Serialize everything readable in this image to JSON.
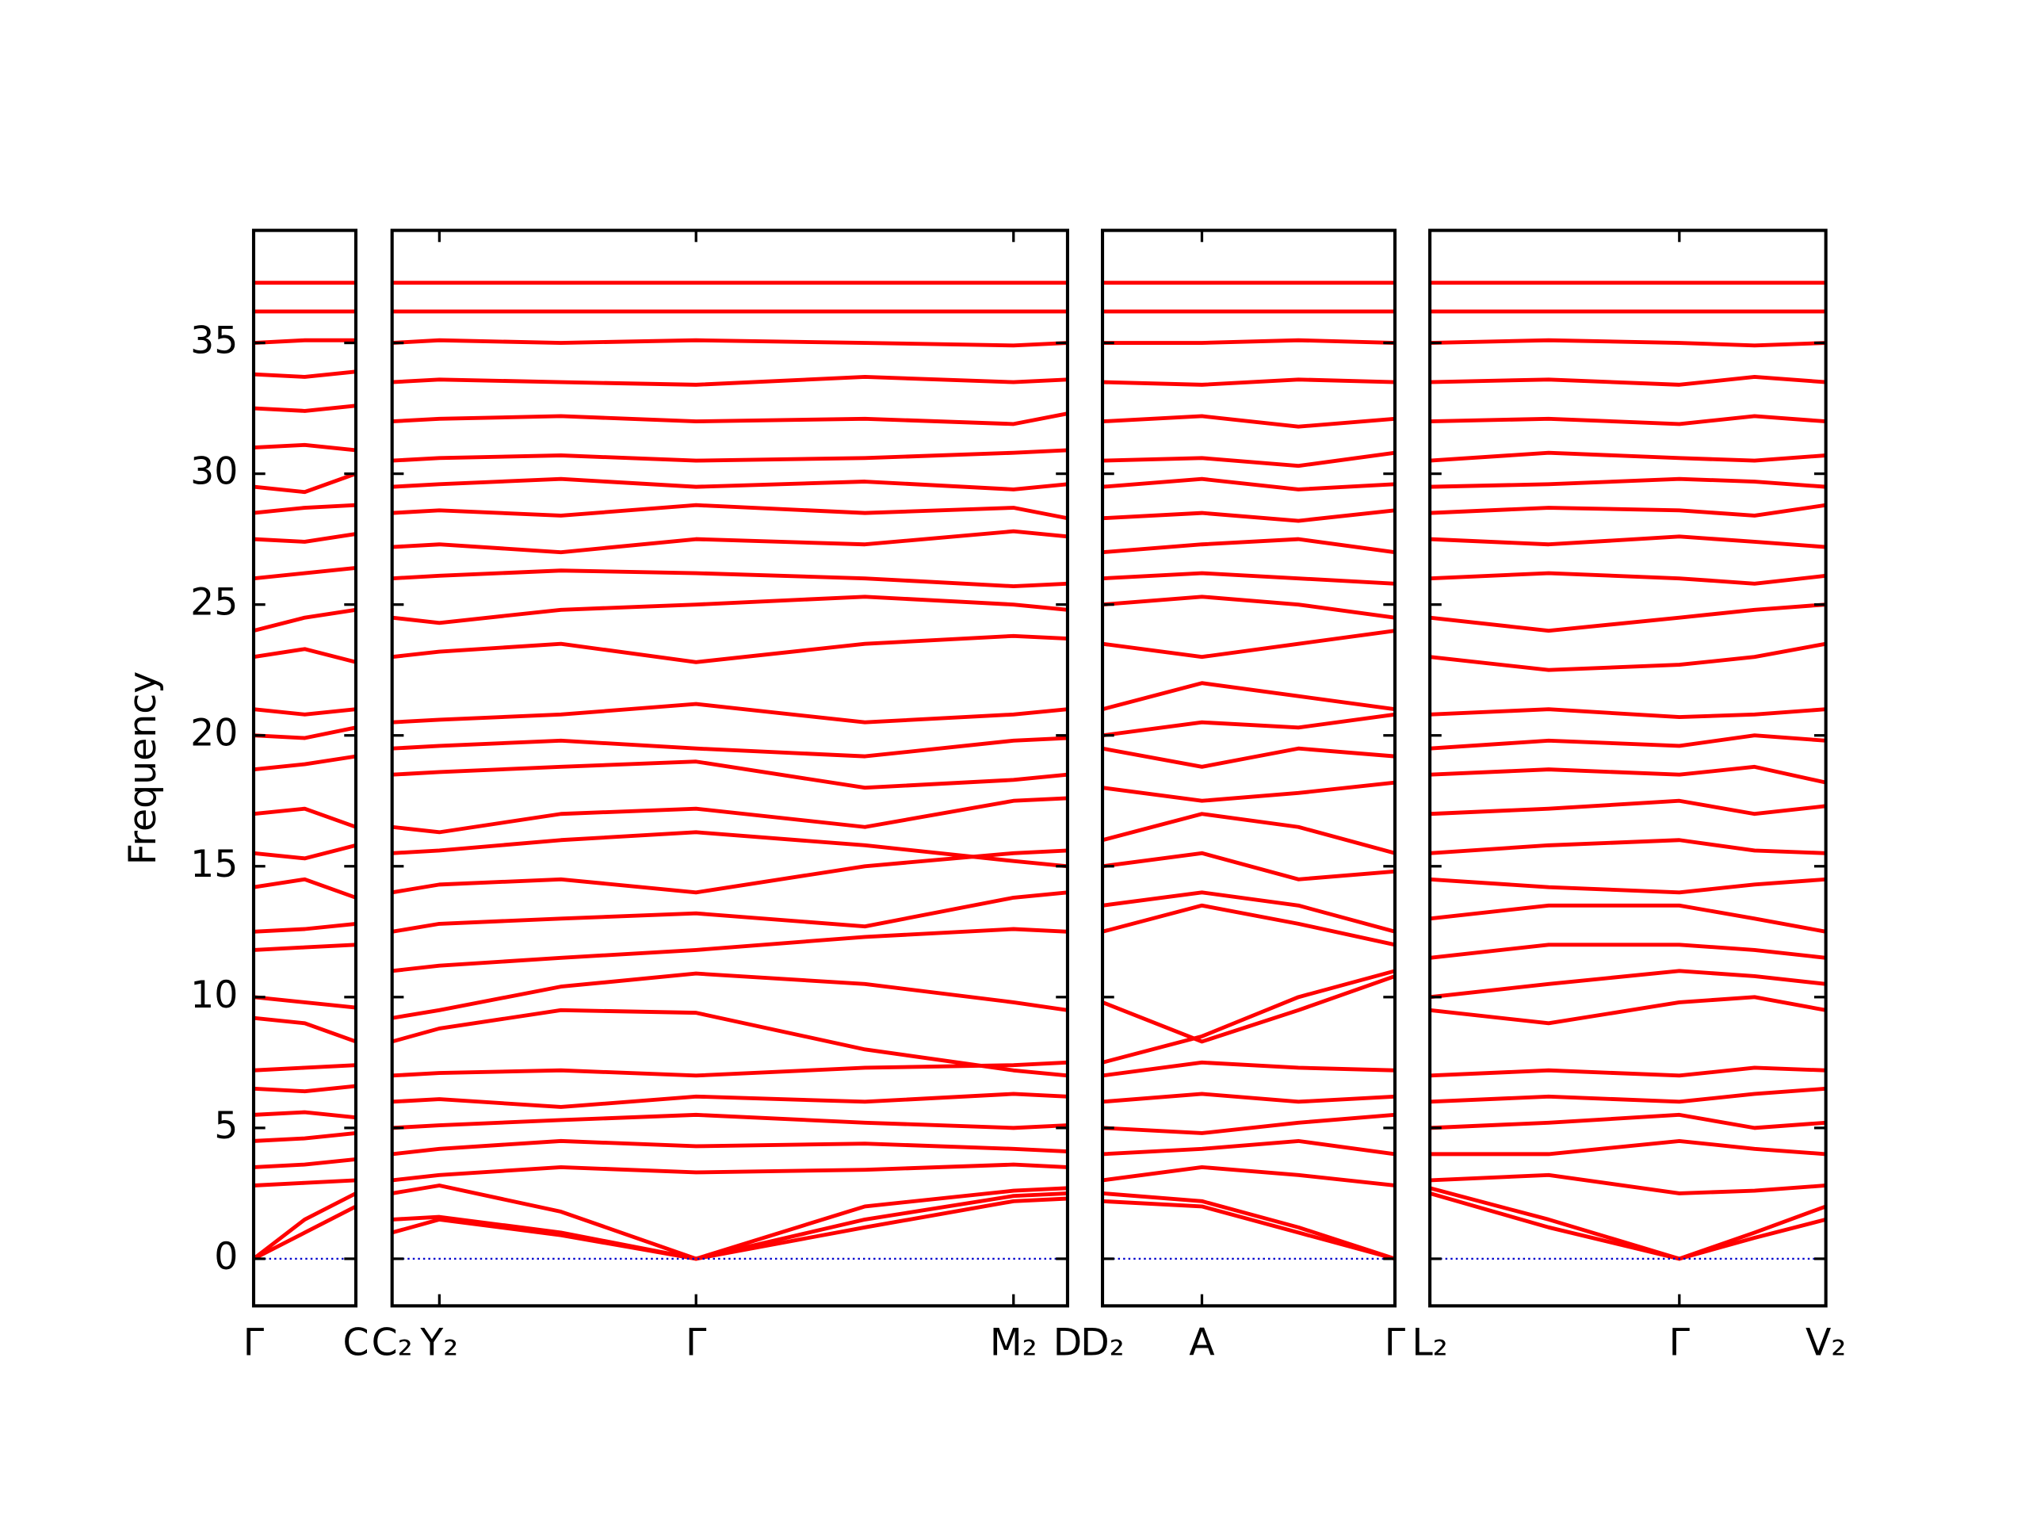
{
  "chart_data": [
    {
      "type": "line",
      "color": "#ff0000",
      "zero_line_color": "#0000cc",
      "ylabel": "Frequency",
      "show_ytick_labels": true,
      "xlim": [
        0,
        1
      ],
      "ylim": [
        -1.8,
        39.3
      ],
      "yticks": [
        0,
        5,
        10,
        15,
        20,
        25,
        30,
        35
      ],
      "xticks": [
        {
          "value": 0,
          "label": "Γ"
        },
        {
          "value": 1,
          "label": "C"
        }
      ],
      "x": [
        0,
        0.5,
        1
      ],
      "series": [
        {
          "values": [
            0,
            1.0,
            2.0
          ]
        },
        {
          "values": [
            0,
            1.5,
            2.5
          ]
        },
        {
          "values": [
            2.8,
            2.9,
            3.0
          ]
        },
        {
          "values": [
            3.5,
            3.6,
            3.8
          ]
        },
        {
          "values": [
            4.5,
            4.6,
            4.8
          ]
        },
        {
          "values": [
            5.5,
            5.6,
            5.4
          ]
        },
        {
          "values": [
            6.5,
            6.4,
            6.6
          ]
        },
        {
          "values": [
            7.2,
            7.3,
            7.4
          ]
        },
        {
          "values": [
            9.2,
            9.0,
            8.3
          ]
        },
        {
          "values": [
            10,
            9.8,
            9.6
          ]
        },
        {
          "values": [
            11.8,
            11.9,
            12.0
          ]
        },
        {
          "values": [
            12.5,
            12.6,
            12.8
          ]
        },
        {
          "values": [
            14.2,
            14.5,
            13.8
          ]
        },
        {
          "values": [
            15.5,
            15.3,
            15.8
          ]
        },
        {
          "values": [
            17,
            17.2,
            16.5
          ]
        },
        {
          "values": [
            18.7,
            18.9,
            19.2
          ]
        },
        {
          "values": [
            20,
            19.9,
            20.3
          ]
        },
        {
          "values": [
            21,
            20.8,
            21.0
          ]
        },
        {
          "values": [
            23,
            23.3,
            22.8
          ]
        },
        {
          "values": [
            24,
            24.5,
            24.8
          ]
        },
        {
          "values": [
            26,
            26.2,
            26.4
          ]
        },
        {
          "values": [
            27.5,
            27.4,
            27.7
          ]
        },
        {
          "values": [
            28.5,
            28.7,
            28.8
          ]
        },
        {
          "values": [
            29.5,
            29.3,
            30.0
          ]
        },
        {
          "values": [
            31,
            31.1,
            30.9
          ]
        },
        {
          "values": [
            32.5,
            32.4,
            32.6
          ]
        },
        {
          "values": [
            33.8,
            33.7,
            33.9
          ]
        },
        {
          "values": [
            35,
            35.1,
            35.1
          ]
        },
        {
          "values": [
            36.2,
            36.2,
            36.2
          ]
        },
        {
          "values": [
            37.3,
            37.3,
            37.3
          ]
        }
      ]
    },
    {
      "type": "line",
      "color": "#ff0000",
      "zero_line_color": "#0000cc",
      "show_ytick_labels": false,
      "xlim": [
        0,
        1
      ],
      "ylim": [
        -1.8,
        39.3
      ],
      "yticks": [
        0,
        5,
        10,
        15,
        20,
        25,
        30,
        35
      ],
      "xticks": [
        {
          "value": 0,
          "label": "C₂"
        },
        {
          "value": 0.07,
          "label": "Y₂"
        },
        {
          "value": 0.45,
          "label": "Γ"
        },
        {
          "value": 0.92,
          "label": "M₂"
        },
        {
          "value": 1,
          "label": "D"
        }
      ],
      "x": [
        0,
        0.07,
        0.25,
        0.45,
        0.7,
        0.92,
        1
      ],
      "series": [
        {
          "values": [
            1.0,
            1.5,
            0.9,
            0,
            1.2,
            2.2,
            2.3
          ]
        },
        {
          "values": [
            1.5,
            1.6,
            1.0,
            0,
            1.5,
            2.4,
            2.5
          ]
        },
        {
          "values": [
            2.5,
            2.8,
            1.8,
            0,
            2.0,
            2.6,
            2.7
          ]
        },
        {
          "values": [
            3,
            3.2,
            3.5,
            3.3,
            3.4,
            3.6,
            3.5
          ]
        },
        {
          "values": [
            4,
            4.2,
            4.5,
            4.3,
            4.4,
            4.2,
            4.1
          ]
        },
        {
          "values": [
            5,
            5.1,
            5.3,
            5.5,
            5.2,
            5.0,
            5.1
          ]
        },
        {
          "values": [
            6,
            6.1,
            5.8,
            6.2,
            6.0,
            6.3,
            6.2
          ]
        },
        {
          "values": [
            7,
            7.1,
            7.2,
            7.0,
            7.3,
            7.4,
            7.5
          ]
        },
        {
          "values": [
            8.3,
            8.8,
            9.5,
            9.4,
            8.0,
            7.2,
            7.0
          ]
        },
        {
          "values": [
            9.2,
            9.5,
            10.4,
            10.9,
            10.5,
            9.8,
            9.5
          ]
        },
        {
          "values": [
            11,
            11.2,
            11.5,
            11.8,
            12.3,
            12.6,
            12.5
          ]
        },
        {
          "values": [
            12.5,
            12.8,
            13.0,
            13.2,
            12.7,
            13.8,
            14.0
          ]
        },
        {
          "values": [
            14,
            14.3,
            14.5,
            14.0,
            15.0,
            15.5,
            15.6
          ]
        },
        {
          "values": [
            15.5,
            15.6,
            16.0,
            16.3,
            15.8,
            15.2,
            15.0
          ]
        },
        {
          "values": [
            16.5,
            16.3,
            17.0,
            17.2,
            16.5,
            17.5,
            17.6
          ]
        },
        {
          "values": [
            18.5,
            18.6,
            18.8,
            19.0,
            18.0,
            18.3,
            18.5
          ]
        },
        {
          "values": [
            19.5,
            19.6,
            19.8,
            19.5,
            19.2,
            19.8,
            19.9
          ]
        },
        {
          "values": [
            20.5,
            20.6,
            20.8,
            21.2,
            20.5,
            20.8,
            21.0
          ]
        },
        {
          "values": [
            23,
            23.2,
            23.5,
            22.8,
            23.5,
            23.8,
            23.7
          ]
        },
        {
          "values": [
            24.5,
            24.3,
            24.8,
            25.0,
            25.3,
            25.0,
            24.8
          ]
        },
        {
          "values": [
            26,
            26.1,
            26.3,
            26.2,
            26.0,
            25.7,
            25.8
          ]
        },
        {
          "values": [
            27.2,
            27.3,
            27.0,
            27.5,
            27.3,
            27.8,
            27.6
          ]
        },
        {
          "values": [
            28.5,
            28.6,
            28.4,
            28.8,
            28.5,
            28.7,
            28.3
          ]
        },
        {
          "values": [
            29.5,
            29.6,
            29.8,
            29.5,
            29.7,
            29.4,
            29.6
          ]
        },
        {
          "values": [
            30.5,
            30.6,
            30.7,
            30.5,
            30.6,
            30.8,
            30.9
          ]
        },
        {
          "values": [
            32,
            32.1,
            32.2,
            32.0,
            32.1,
            31.9,
            32.3
          ]
        },
        {
          "values": [
            33.5,
            33.6,
            33.5,
            33.4,
            33.7,
            33.5,
            33.6
          ]
        },
        {
          "values": [
            35,
            35.1,
            35.0,
            35.1,
            35.0,
            34.9,
            35.0
          ]
        },
        {
          "values": [
            36.2,
            36.2,
            36.2,
            36.2,
            36.2,
            36.2,
            36.2
          ]
        },
        {
          "values": [
            37.3,
            37.3,
            37.3,
            37.3,
            37.3,
            37.3,
            37.3
          ]
        }
      ]
    },
    {
      "type": "line",
      "color": "#ff0000",
      "zero_line_color": "#0000cc",
      "show_ytick_labels": false,
      "xlim": [
        0,
        1
      ],
      "ylim": [
        -1.8,
        39.3
      ],
      "yticks": [
        0,
        5,
        10,
        15,
        20,
        25,
        30,
        35
      ],
      "xticks": [
        {
          "value": 0,
          "label": "D₂"
        },
        {
          "value": 0.34,
          "label": "A"
        },
        {
          "value": 1,
          "label": "Γ"
        }
      ],
      "x": [
        0,
        0.34,
        0.67,
        1
      ],
      "series": [
        {
          "values": [
            2.2,
            2.0,
            1.0,
            0
          ]
        },
        {
          "values": [
            2.5,
            2.2,
            1.2,
            0
          ]
        },
        {
          "values": [
            3,
            3.5,
            3.2,
            2.8
          ]
        },
        {
          "values": [
            4,
            4.2,
            4.5,
            4.0
          ]
        },
        {
          "values": [
            5,
            4.8,
            5.2,
            5.5
          ]
        },
        {
          "values": [
            6,
            6.3,
            6.0,
            6.2
          ]
        },
        {
          "values": [
            7,
            7.5,
            7.3,
            7.2
          ]
        },
        {
          "values": [
            9.8,
            8.3,
            9.5,
            10.8
          ]
        },
        {
          "values": [
            7.5,
            8.5,
            10.0,
            11.0
          ]
        },
        {
          "values": [
            12.5,
            13.5,
            12.8,
            12.0
          ]
        },
        {
          "values": [
            13.5,
            14.0,
            13.5,
            12.5
          ]
        },
        {
          "values": [
            15,
            15.5,
            14.5,
            14.8
          ]
        },
        {
          "values": [
            16,
            17.0,
            16.5,
            15.5
          ]
        },
        {
          "values": [
            18,
            17.5,
            17.8,
            18.2
          ]
        },
        {
          "values": [
            19.5,
            18.8,
            19.5,
            19.2
          ]
        },
        {
          "values": [
            20,
            20.5,
            20.3,
            20.8
          ]
        },
        {
          "values": [
            21,
            22.0,
            21.5,
            21.0
          ]
        },
        {
          "values": [
            23.5,
            23.0,
            23.5,
            24.0
          ]
        },
        {
          "values": [
            25,
            25.3,
            25.0,
            24.5
          ]
        },
        {
          "values": [
            26,
            26.2,
            26.0,
            25.8
          ]
        },
        {
          "values": [
            27,
            27.3,
            27.5,
            27.0
          ]
        },
        {
          "values": [
            28.3,
            28.5,
            28.2,
            28.6
          ]
        },
        {
          "values": [
            29.5,
            29.8,
            29.4,
            29.6
          ]
        },
        {
          "values": [
            30.5,
            30.6,
            30.3,
            30.8
          ]
        },
        {
          "values": [
            32,
            32.2,
            31.8,
            32.1
          ]
        },
        {
          "values": [
            33.5,
            33.4,
            33.6,
            33.5
          ]
        },
        {
          "values": [
            35,
            35.0,
            35.1,
            35.0
          ]
        },
        {
          "values": [
            36.2,
            36.2,
            36.2,
            36.2
          ]
        },
        {
          "values": [
            37.3,
            37.3,
            37.3,
            37.3
          ]
        }
      ]
    },
    {
      "type": "line",
      "color": "#ff0000",
      "zero_line_color": "#0000cc",
      "show_ytick_labels": false,
      "xlim": [
        0,
        1
      ],
      "ylim": [
        -1.8,
        39.3
      ],
      "yticks": [
        0,
        5,
        10,
        15,
        20,
        25,
        30,
        35
      ],
      "xticks": [
        {
          "value": 0,
          "label": "L₂"
        },
        {
          "value": 0.63,
          "label": "Γ"
        },
        {
          "value": 1,
          "label": "V₂"
        }
      ],
      "x": [
        0,
        0.3,
        0.63,
        0.82,
        1
      ],
      "series": [
        {
          "values": [
            2.5,
            1.2,
            0,
            0.8,
            1.5
          ]
        },
        {
          "values": [
            2.7,
            1.5,
            0,
            1.0,
            2.0
          ]
        },
        {
          "values": [
            3,
            3.2,
            2.5,
            2.6,
            2.8
          ]
        },
        {
          "values": [
            4,
            4.0,
            4.5,
            4.2,
            4.0
          ]
        },
        {
          "values": [
            5,
            5.2,
            5.5,
            5.0,
            5.2
          ]
        },
        {
          "values": [
            6,
            6.2,
            6.0,
            6.3,
            6.5
          ]
        },
        {
          "values": [
            7,
            7.2,
            7.0,
            7.3,
            7.2
          ]
        },
        {
          "values": [
            9.5,
            9.0,
            9.8,
            10.0,
            9.5
          ]
        },
        {
          "values": [
            10,
            10.5,
            11.0,
            10.8,
            10.5
          ]
        },
        {
          "values": [
            11.5,
            12,
            12.0,
            11.8,
            11.5
          ]
        },
        {
          "values": [
            13,
            13.5,
            13.5,
            13.0,
            12.5
          ]
        },
        {
          "values": [
            14.5,
            14.2,
            14.0,
            14.3,
            14.5
          ]
        },
        {
          "values": [
            15.5,
            15.8,
            16.0,
            15.6,
            15.5
          ]
        },
        {
          "values": [
            17,
            17.2,
            17.5,
            17.0,
            17.3
          ]
        },
        {
          "values": [
            18.5,
            18.7,
            18.5,
            18.8,
            18.2
          ]
        },
        {
          "values": [
            19.5,
            19.8,
            19.6,
            20.0,
            19.8
          ]
        },
        {
          "values": [
            20.8,
            21.0,
            20.7,
            20.8,
            21.0
          ]
        },
        {
          "values": [
            23,
            22.5,
            22.7,
            23.0,
            23.5
          ]
        },
        {
          "values": [
            24.5,
            24.0,
            24.5,
            24.8,
            25.0
          ]
        },
        {
          "values": [
            26,
            26.2,
            26.0,
            25.8,
            26.1
          ]
        },
        {
          "values": [
            27.5,
            27.3,
            27.6,
            27.4,
            27.2
          ]
        },
        {
          "values": [
            28.5,
            28.7,
            28.6,
            28.4,
            28.8
          ]
        },
        {
          "values": [
            29.5,
            29.6,
            29.8,
            29.7,
            29.5
          ]
        },
        {
          "values": [
            30.5,
            30.8,
            30.6,
            30.5,
            30.7
          ]
        },
        {
          "values": [
            32,
            32.1,
            31.9,
            32.2,
            32.0
          ]
        },
        {
          "values": [
            33.5,
            33.6,
            33.4,
            33.7,
            33.5
          ]
        },
        {
          "values": [
            35,
            35.1,
            35.0,
            34.9,
            35.0
          ]
        },
        {
          "values": [
            36.2,
            36.2,
            36.2,
            36.2,
            36.2
          ]
        },
        {
          "values": [
            37.3,
            37.3,
            37.3,
            37.3,
            37.3
          ]
        }
      ]
    }
  ]
}
